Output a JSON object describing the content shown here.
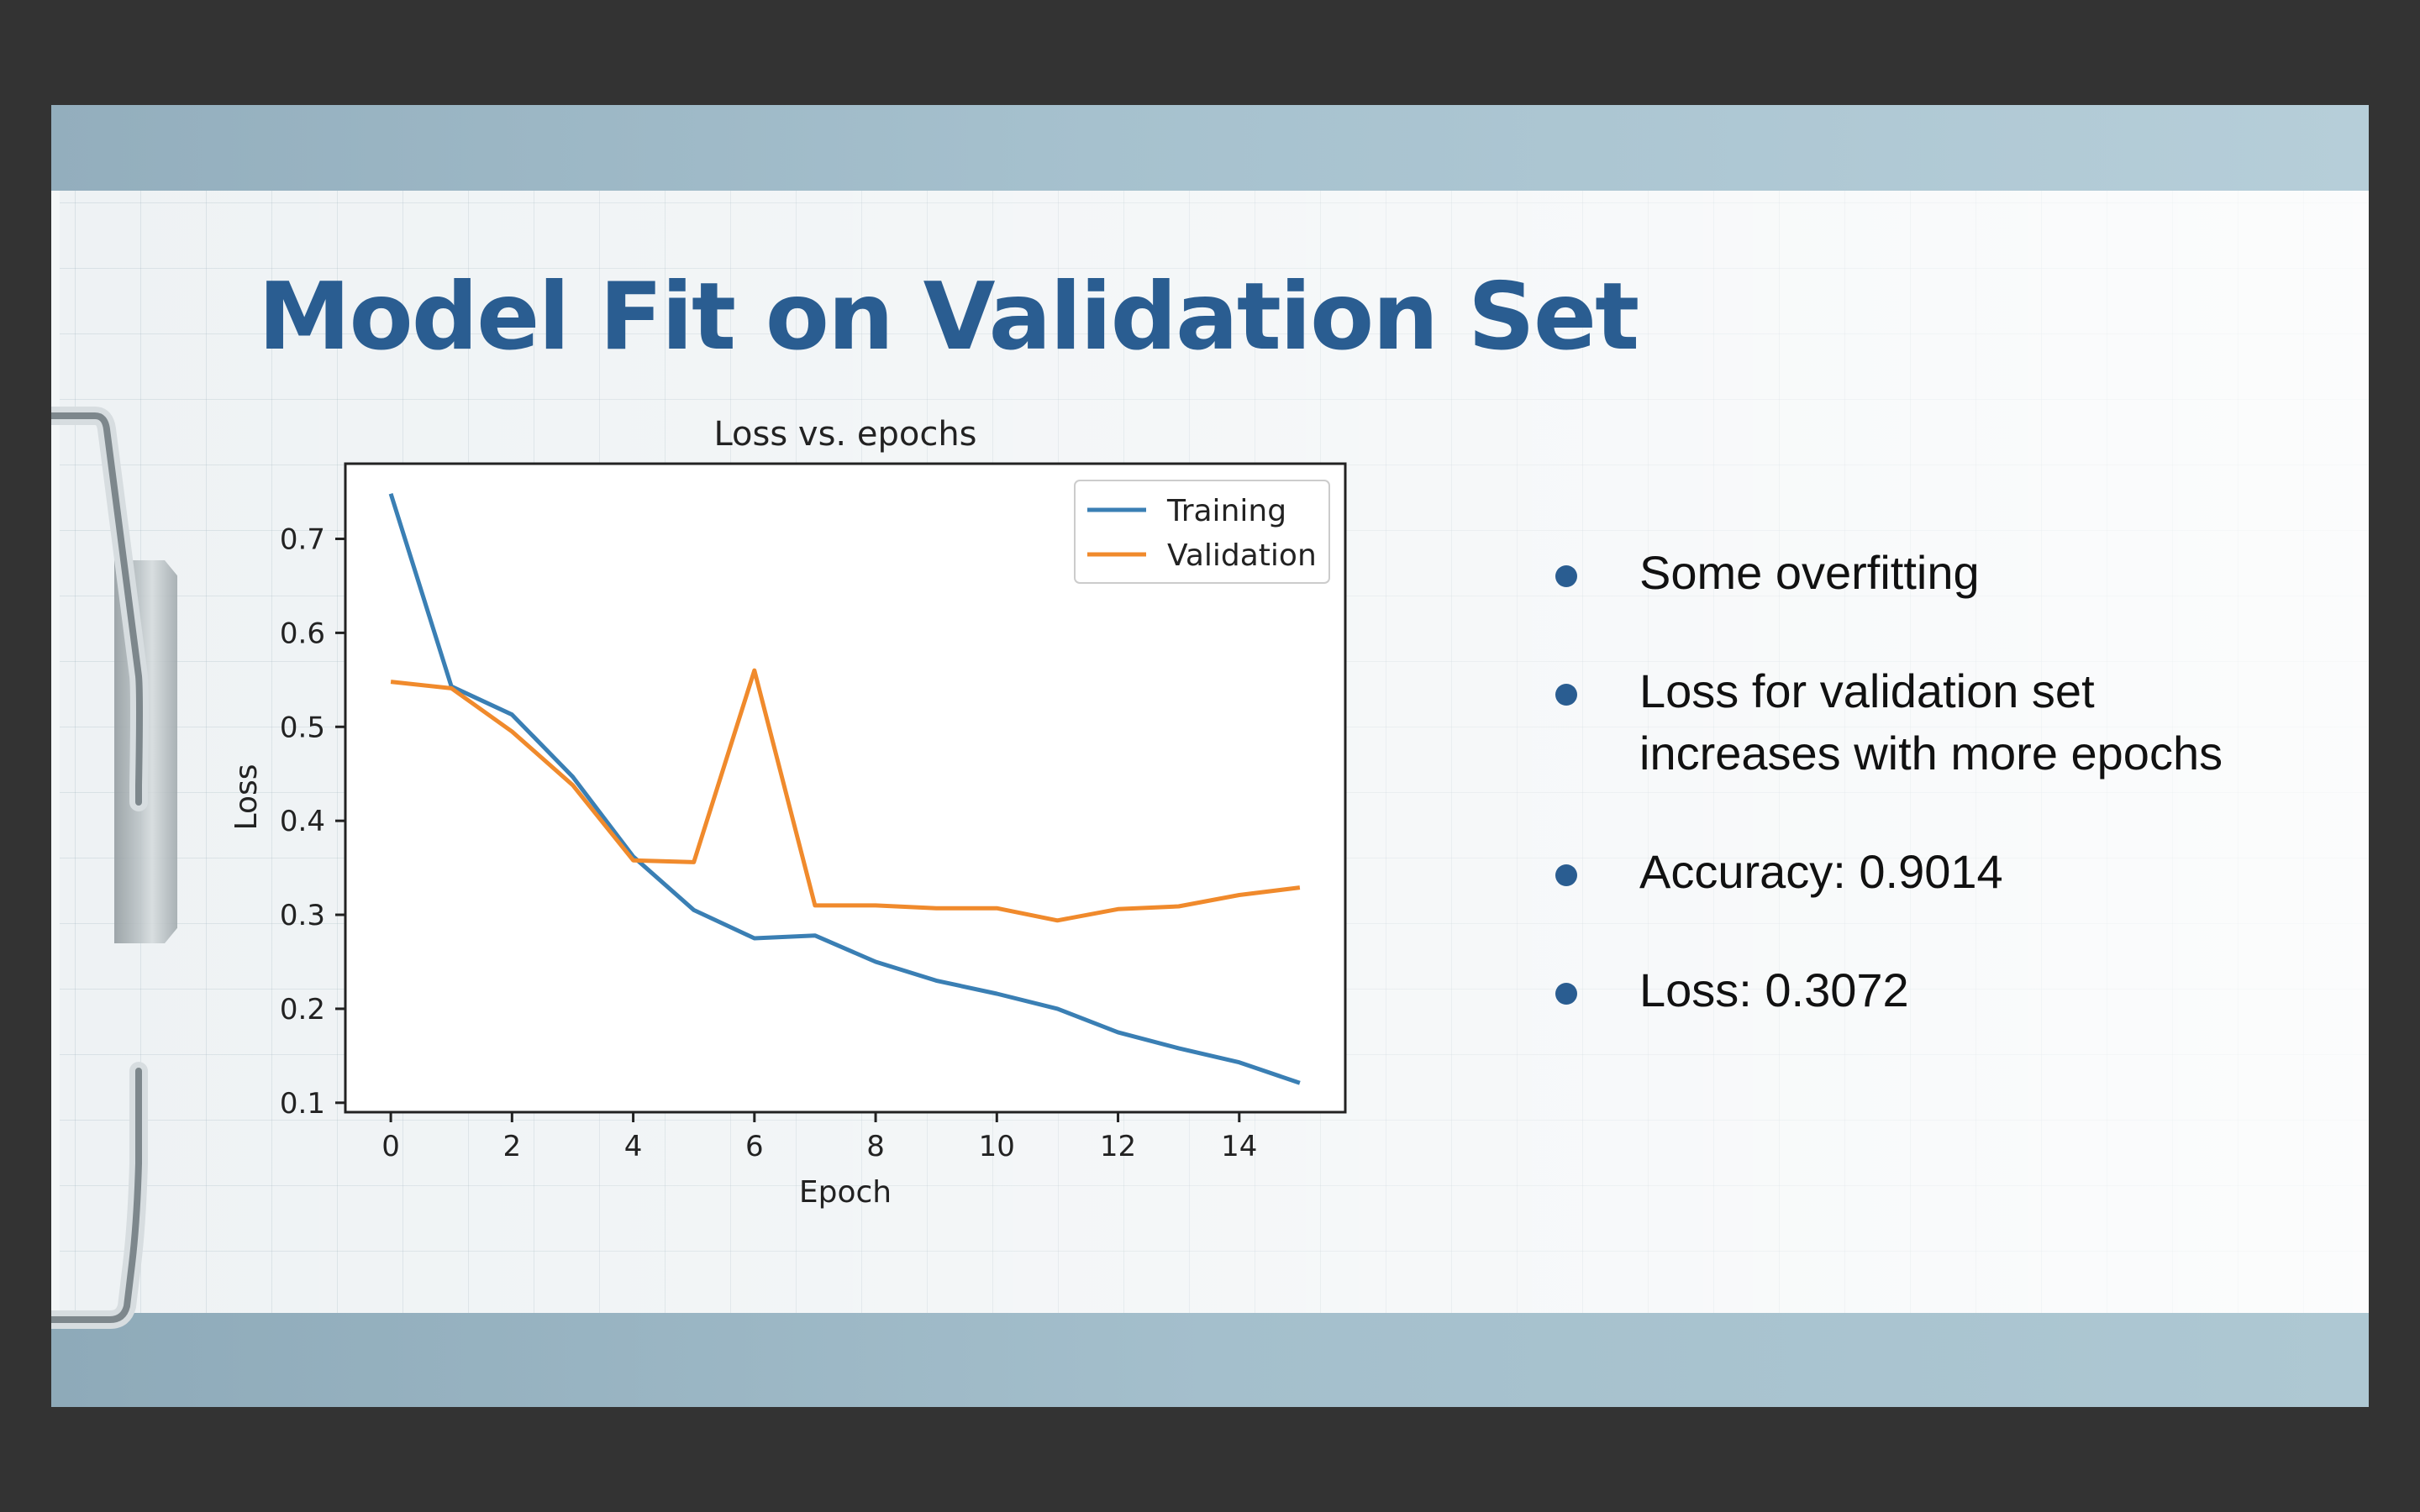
{
  "slide": {
    "title": "Model Fit on Validation Set",
    "bullets": [
      "Some overfitting",
      "Loss for validation set increases with more epochs",
      "Accuracy: 0.9014",
      "Loss: 0.3072"
    ],
    "accent_color": "#2a5d91"
  },
  "chart_data": {
    "type": "line",
    "title": "Loss vs. epochs",
    "xlabel": "Epoch",
    "ylabel": "Loss",
    "x": [
      0,
      1,
      2,
      3,
      4,
      5,
      6,
      7,
      8,
      9,
      10,
      11,
      12,
      13,
      14,
      15
    ],
    "xlim": [
      -0.75,
      15.75
    ],
    "ylim": [
      0.09,
      0.78
    ],
    "xticks": [
      0,
      2,
      4,
      6,
      8,
      10,
      12,
      14
    ],
    "yticks": [
      0.1,
      0.2,
      0.3,
      0.4,
      0.5,
      0.6,
      0.7
    ],
    "legend_position": "top-right",
    "grid": false,
    "series": [
      {
        "name": "Training",
        "color": "#3a7fb4",
        "values": [
          0.748,
          0.543,
          0.513,
          0.447,
          0.362,
          0.305,
          0.275,
          0.278,
          0.25,
          0.23,
          0.216,
          0.2,
          0.175,
          0.158,
          0.143,
          0.121
        ]
      },
      {
        "name": "Validation",
        "color": "#f08a2c",
        "values": [
          0.548,
          0.541,
          0.495,
          0.438,
          0.358,
          0.356,
          0.56,
          0.31,
          0.31,
          0.307,
          0.307,
          0.294,
          0.306,
          0.309,
          0.321,
          0.329
        ]
      }
    ]
  }
}
